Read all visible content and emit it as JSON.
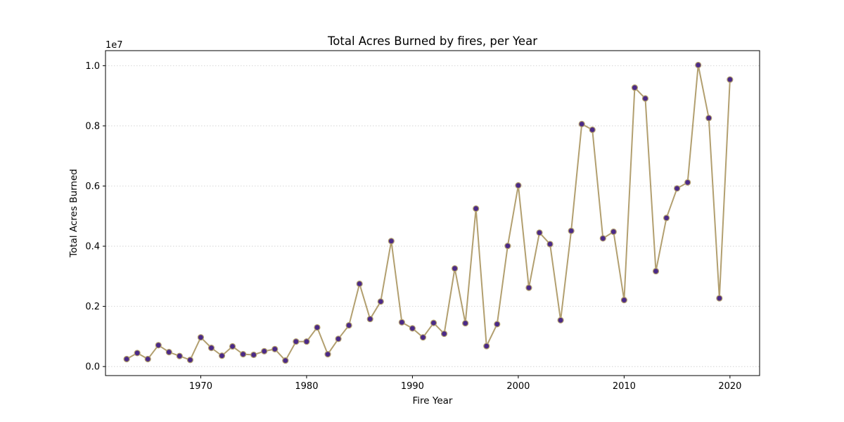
{
  "chart_data": {
    "type": "line",
    "title": "Total Acres Burned by fires, per Year",
    "xlabel": "Fire Year",
    "ylabel": "Total Acres Burned",
    "y_offset_label": "1e7",
    "xlim": [
      1961,
      2022.8
    ],
    "ylim": [
      -0.03,
      1.05
    ],
    "x_ticks": [
      1970,
      1980,
      1990,
      2000,
      2010,
      2020
    ],
    "y_ticks": [
      0.0,
      0.2,
      0.4,
      0.6,
      0.8,
      1.0
    ],
    "y_tick_labels": [
      "0.0",
      "0.2",
      "0.4",
      "0.6",
      "0.8",
      "1.0"
    ],
    "grid": "y-dotted",
    "line_color": "#b29f6f",
    "marker_face_color": "#4b2a87",
    "marker_edge_color": "#b29f6f",
    "series": [
      {
        "x": [
          1963,
          1964,
          1965,
          1966,
          1967,
          1968,
          1969,
          1970,
          1971,
          1972,
          1973,
          1974,
          1975,
          1976,
          1977,
          1978,
          1979,
          1980,
          1981,
          1982,
          1983,
          1984,
          1985,
          1986,
          1987,
          1988,
          1989,
          1990,
          1991,
          1992,
          1993,
          1994,
          1995,
          1996,
          1997,
          1998,
          1999,
          2000,
          2001,
          2002,
          2003,
          2004,
          2005,
          2006,
          2007,
          2008,
          2009,
          2010,
          2011,
          2012,
          2013,
          2014,
          2015,
          2016,
          2017,
          2018,
          2019,
          2020
        ],
        "values": [
          0.025,
          0.045,
          0.025,
          0.071,
          0.048,
          0.035,
          0.022,
          0.097,
          0.062,
          0.036,
          0.067,
          0.041,
          0.039,
          0.051,
          0.058,
          0.02,
          0.083,
          0.083,
          0.13,
          0.041,
          0.092,
          0.137,
          0.275,
          0.158,
          0.216,
          0.417,
          0.147,
          0.127,
          0.097,
          0.145,
          0.109,
          0.326,
          0.144,
          0.525,
          0.068,
          0.141,
          0.401,
          0.602,
          0.262,
          0.445,
          0.407,
          0.154,
          0.451,
          0.806,
          0.787,
          0.426,
          0.448,
          0.221,
          0.927,
          0.891,
          0.317,
          0.494,
          0.592,
          0.612,
          1.002,
          0.826,
          0.227,
          0.954
        ]
      }
    ]
  }
}
